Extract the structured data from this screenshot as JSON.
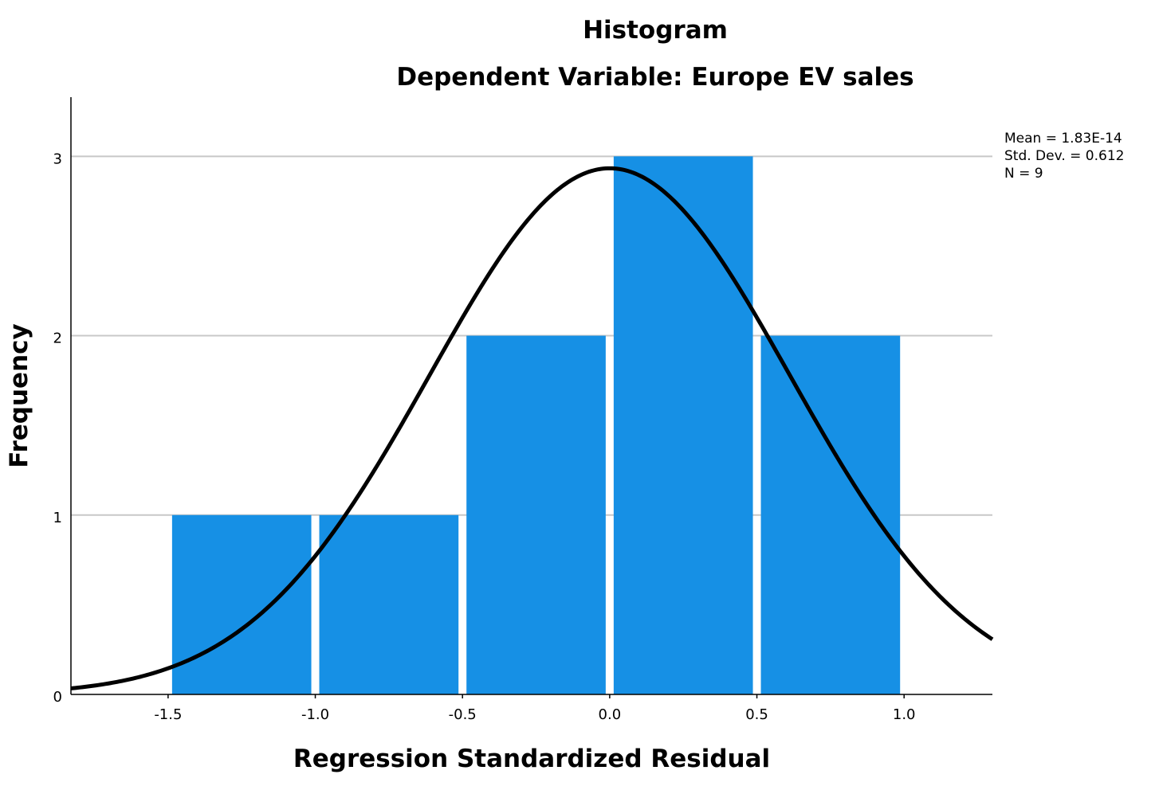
{
  "chart_data": {
    "type": "bar",
    "title": "Histogram",
    "subtitle": "Dependent Variable: Europe EV sales",
    "xlabel": "Regression Standardized Residual",
    "ylabel": "Frequency",
    "bins": [
      {
        "start": -1.5,
        "end": -1.0,
        "count": 1
      },
      {
        "start": -1.0,
        "end": -0.5,
        "count": 1
      },
      {
        "start": -0.5,
        "end": 0.0,
        "count": 2
      },
      {
        "start": 0.0,
        "end": 0.5,
        "count": 3
      },
      {
        "start": 0.5,
        "end": 1.0,
        "count": 2
      }
    ],
    "xlim": [
      -1.83,
      1.3
    ],
    "ylim": [
      0,
      3.33
    ],
    "x_ticks": [
      -1.5,
      -1.0,
      -0.5,
      0.0,
      0.5,
      1.0
    ],
    "x_tick_labels": [
      "-1.5",
      "-1.0",
      "-0.5",
      "0.0",
      "0.5",
      "1.0"
    ],
    "y_ticks": [
      0,
      1,
      2,
      3
    ],
    "y_tick_labels": [
      "0",
      "1",
      "2",
      "3"
    ],
    "grid": "horizontal",
    "bar_color": "#1690e5",
    "normal_curve": {
      "mean": 1.83e-14,
      "std": 0.612,
      "n": 9,
      "bin_width": 0.5,
      "color": "#000000"
    },
    "stats": {
      "mean": "Mean = 1.83E-14",
      "std_dev": "Std. Dev. = 0.612",
      "n": "N = 9"
    }
  }
}
